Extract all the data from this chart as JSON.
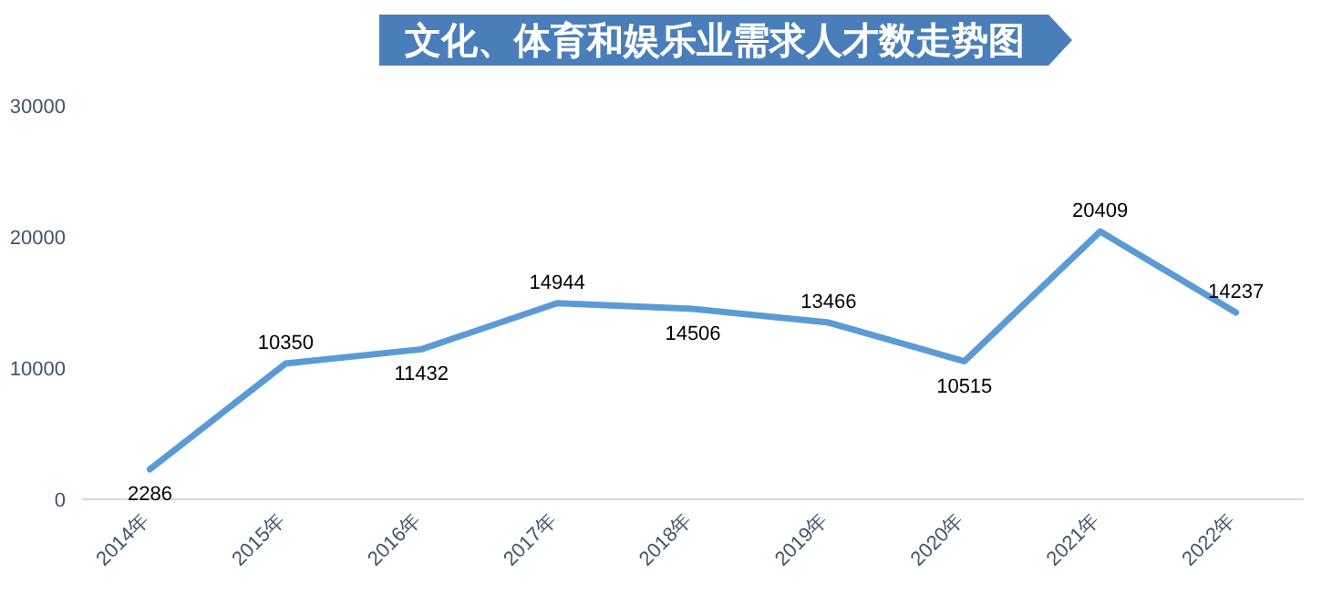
{
  "chart_data": {
    "type": "line",
    "title": "文化、体育和娱乐业需求人才数走势图",
    "categories": [
      "2014年",
      "2015年",
      "2016年",
      "2017年",
      "2018年",
      "2019年",
      "2020年",
      "2021年",
      "2022年"
    ],
    "series": [
      {
        "color": "#5b9bd5",
        "values": [
          2286,
          10350,
          11432,
          14944,
          14506,
          13466,
          10515,
          20409,
          14237
        ]
      }
    ],
    "ylim": [
      0,
      30000
    ],
    "yticks": [
      0,
      10000,
      20000,
      30000
    ],
    "grid": false,
    "marker": "none",
    "line_style": "solid",
    "data_labels": true
  }
}
